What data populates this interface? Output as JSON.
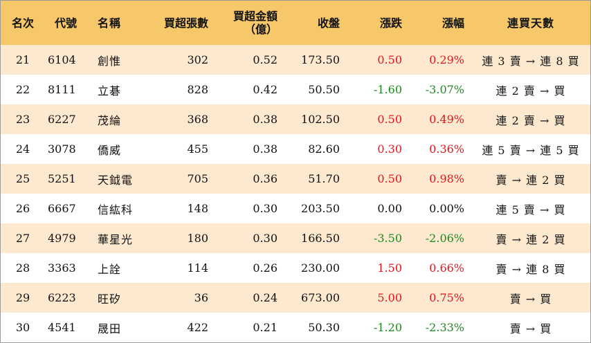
{
  "headers": {
    "rank": "名次",
    "code": "代號",
    "name": "名稱",
    "net_buy_lots": "買超張數",
    "net_buy_amount_line1": "買超金額",
    "net_buy_amount_line2": "（億）",
    "close": "收盤",
    "change": "漲跌",
    "change_pct": "漲幅",
    "consecutive_days": "連買天數"
  },
  "colors": {
    "header_bg": "#f7c86a",
    "odd_row_bg": "#fde9cf",
    "up": "#e8131c",
    "down": "#1a8a1f"
  },
  "rows": [
    {
      "rank": "21",
      "code": "6104",
      "name": "創惟",
      "lots": "302",
      "amount": "0.52",
      "close": "173.50",
      "change": "0.50",
      "pct": "0.29%",
      "days": "連 3 賣 → 連 8 買",
      "trend": "up"
    },
    {
      "rank": "22",
      "code": "8111",
      "name": "立碁",
      "lots": "828",
      "amount": "0.42",
      "close": "50.50",
      "change": "-1.60",
      "pct": "-3.07%",
      "days": "連 2 賣 → 買",
      "trend": "down"
    },
    {
      "rank": "23",
      "code": "6227",
      "name": "茂綸",
      "lots": "368",
      "amount": "0.38",
      "close": "102.50",
      "change": "0.50",
      "pct": "0.49%",
      "days": "連 2 賣 → 買",
      "trend": "up"
    },
    {
      "rank": "24",
      "code": "3078",
      "name": "僑威",
      "lots": "455",
      "amount": "0.38",
      "close": "82.60",
      "change": "0.30",
      "pct": "0.36%",
      "days": "連 5 賣 → 連 5 買",
      "trend": "up"
    },
    {
      "rank": "25",
      "code": "5251",
      "name": "天鉞電",
      "lots": "705",
      "amount": "0.36",
      "close": "51.70",
      "change": "0.50",
      "pct": "0.98%",
      "days": "賣 → 連 2 買",
      "trend": "up"
    },
    {
      "rank": "26",
      "code": "6667",
      "name": "信紘科",
      "lots": "148",
      "amount": "0.30",
      "close": "203.50",
      "change": "0.00",
      "pct": "0.00%",
      "days": "連 5 賣 → 買",
      "trend": "flat"
    },
    {
      "rank": "27",
      "code": "4979",
      "name": "華星光",
      "lots": "180",
      "amount": "0.30",
      "close": "166.50",
      "change": "-3.50",
      "pct": "-2.06%",
      "days": "賣 → 連 2 買",
      "trend": "down"
    },
    {
      "rank": "28",
      "code": "3363",
      "name": "上詮",
      "lots": "114",
      "amount": "0.26",
      "close": "230.00",
      "change": "1.50",
      "pct": "0.66%",
      "days": "賣 → 連 8 買",
      "trend": "up"
    },
    {
      "rank": "29",
      "code": "6223",
      "name": "旺矽",
      "lots": "36",
      "amount": "0.24",
      "close": "673.00",
      "change": "5.00",
      "pct": "0.75%",
      "days": "賣 → 買",
      "trend": "up"
    },
    {
      "rank": "30",
      "code": "4541",
      "name": "晟田",
      "lots": "422",
      "amount": "0.21",
      "close": "50.30",
      "change": "-1.20",
      "pct": "-2.33%",
      "days": "賣 → 買",
      "trend": "down"
    }
  ]
}
